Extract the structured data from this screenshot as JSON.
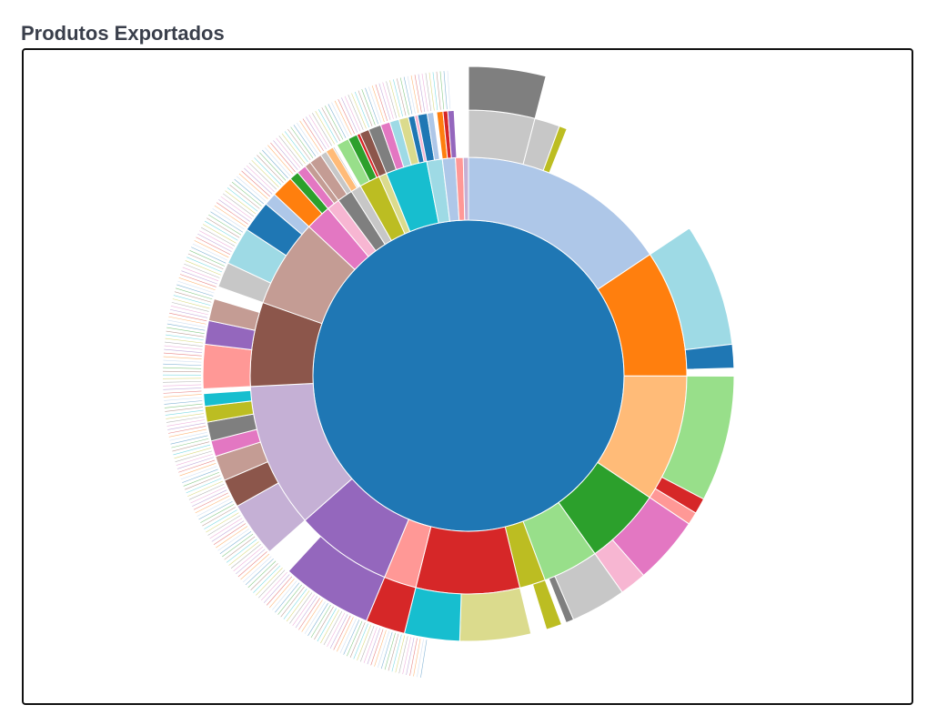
{
  "title": "Produtos Exportados",
  "chart_data": {
    "type": "sunburst",
    "title": "Produtos Exportados",
    "root_color": "#1f77b4",
    "segments": [
      {
        "color": "#aec7e8",
        "value": 16.3,
        "children": [
          {
            "color": "#c7c7c7",
            "value": 4.2,
            "children": [
              {
                "color": "#7f7f7f",
                "value": 4.2
              }
            ]
          },
          {
            "color": "#c7c7c7",
            "value": 1.6
          },
          {
            "color": "#bcbd22",
            "value": 0.5
          },
          {
            "color": "#ffffff",
            "value": 10.0
          }
        ]
      },
      {
        "color": "#ff7f0e",
        "value": 9.8,
        "children": [
          {
            "color": "#9edae5",
            "value": 7.8
          },
          {
            "color": "#1f77b4",
            "value": 1.5
          },
          {
            "color": "#ffffff",
            "value": 0.5
          }
        ]
      },
      {
        "color": "#ffbb78",
        "value": 9.8,
        "children": [
          {
            "color": "#98df8a",
            "value": 8.0
          },
          {
            "color": "#d62728",
            "value": 1.0
          },
          {
            "color": "#ff9896",
            "value": 0.8
          }
        ]
      },
      {
        "color": "#2ca02c",
        "value": 6.0,
        "children": [
          {
            "color": "#e377c2",
            "value": 4.3
          },
          {
            "color": "#f7b6d2",
            "value": 1.7
          }
        ]
      },
      {
        "color": "#98df8a",
        "value": 4.3,
        "children": [
          {
            "color": "#c7c7c7",
            "value": 3.5
          },
          {
            "color": "#7f7f7f",
            "value": 0.5
          }
        ]
      },
      {
        "color": "#bcbd22",
        "value": 2.0,
        "children": [
          {
            "color": "#bcbd22",
            "value": 1.0
          }
        ]
      },
      {
        "color": "#d62728",
        "value": 8.0,
        "children": [
          {
            "color": "#dbdb8d",
            "value": 4.5
          },
          {
            "color": "#17becf",
            "value": 3.5
          }
        ]
      },
      {
        "color": "#ff9896",
        "value": 2.5,
        "children": [
          {
            "color": "#d62728",
            "value": 2.5
          }
        ]
      },
      {
        "color": "#9467bd",
        "value": 7.5,
        "children": [
          {
            "color": "#9467bd",
            "value": 5.8
          }
        ]
      },
      {
        "color": "#c5b0d5",
        "value": 11.2,
        "children": [
          {
            "color": "#c5b0d5",
            "value": 3.5
          },
          {
            "color": "#8c564b",
            "value": 1.8
          },
          {
            "color": "#c49c94",
            "value": 1.6
          },
          {
            "color": "#e377c2",
            "value": 1.0
          },
          {
            "color": "#7f7f7f",
            "value": 1.2
          },
          {
            "color": "#bcbd22",
            "value": 1.0
          },
          {
            "color": "#17becf",
            "value": 0.8
          }
        ]
      },
      {
        "color": "#8c564b",
        "value": 6.5,
        "children": [
          {
            "color": "#ff9896",
            "value": 2.8
          },
          {
            "color": "#9467bd",
            "value": 1.5
          },
          {
            "color": "#c49c94",
            "value": 1.4
          }
        ]
      },
      {
        "color": "#c49c94",
        "value": 6.8,
        "children": [
          {
            "color": "#c7c7c7",
            "value": 1.6
          },
          {
            "color": "#9edae5",
            "value": 2.4
          },
          {
            "color": "#1f77b4",
            "value": 2.0
          },
          {
            "color": "#aec7e8",
            "value": 0.8
          }
        ]
      },
      {
        "color": "#e377c2",
        "value": 2.0,
        "children": [
          {
            "color": "#ff7f0e",
            "value": 1.4
          },
          {
            "color": "#2ca02c",
            "value": 0.6
          }
        ]
      },
      {
        "color": "#f7b6d2",
        "value": 1.0,
        "children": [
          {
            "color": "#e377c2",
            "value": 0.6
          },
          {
            "color": "#c49c94",
            "value": 0.9
          },
          {
            "color": "#ff9896",
            "value": 0.8
          }
        ]
      },
      {
        "color": "#7f7f7f",
        "value": 1.2,
        "children": [
          {
            "color": "#c49c94",
            "value": 0.8
          },
          {
            "color": "#c7c7c7",
            "value": 1.0
          }
        ]
      },
      {
        "color": "#c7c7c7",
        "value": 0.8,
        "children": [
          {
            "color": "#ffbb78",
            "value": 0.5
          }
        ]
      },
      {
        "color": "#bcbd22",
        "value": 1.6,
        "children": [
          {
            "color": "#98df8a",
            "value": 0.8
          },
          {
            "color": "#2ca02c",
            "value": 0.6
          },
          {
            "color": "#d62728",
            "value": 0.4
          }
        ]
      },
      {
        "color": "#dbdb8d",
        "value": 0.6,
        "children": [
          {
            "color": "#8c564b",
            "value": 1.0
          },
          {
            "color": "#c5b0d5",
            "value": 0.6
          }
        ]
      },
      {
        "color": "#17becf",
        "value": 3.2,
        "children": [
          {
            "color": "#7f7f7f",
            "value": 0.8
          },
          {
            "color": "#e377c2",
            "value": 0.6
          },
          {
            "color": "#9edae5",
            "value": 0.6
          },
          {
            "color": "#dbdb8d",
            "value": 0.6
          },
          {
            "color": "#1f77b4",
            "value": 0.4
          },
          {
            "color": "#f7b6d2",
            "value": 0.4
          }
        ]
      },
      {
        "color": "#9edae5",
        "value": 1.2,
        "children": [
          {
            "color": "#1f77b4",
            "value": 0.6
          },
          {
            "color": "#aec7e8",
            "value": 0.4
          }
        ]
      },
      {
        "color": "#aec7e8",
        "value": 1.0,
        "children": [
          {
            "color": "#ff7f0e",
            "value": 0.4
          },
          {
            "color": "#d62728",
            "value": 0.3
          },
          {
            "color": "#9467bd",
            "value": 0.4
          }
        ]
      },
      {
        "color": "#ff9896",
        "value": 0.6
      },
      {
        "color": "#c5b0d5",
        "value": 0.4
      }
    ]
  }
}
